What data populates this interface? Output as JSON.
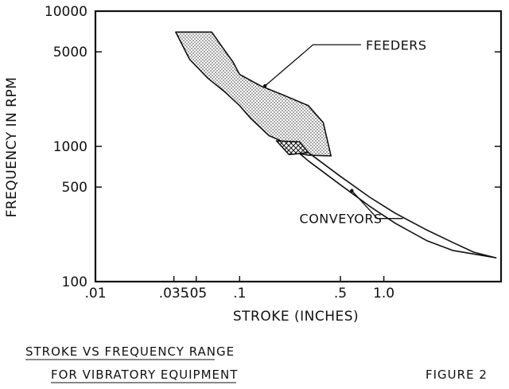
{
  "chart_data": {
    "type": "area",
    "xlabel": "STROKE (INCHES)",
    "ylabel": "FREQUENCY IN RPM",
    "x_scale": "log",
    "y_scale": "log",
    "xlim": [
      0.01,
      6.5
    ],
    "ylim": [
      100,
      10000
    ],
    "x_ticks": [
      {
        "value": 0.01,
        "label": ".01"
      },
      {
        "value": 0.035,
        "label": ".035"
      },
      {
        "value": 0.05,
        "label": ".05"
      },
      {
        "value": 0.1,
        "label": ".1"
      },
      {
        "value": 0.5,
        "label": ".5"
      },
      {
        "value": 1.0,
        "label": "1.0"
      }
    ],
    "y_ticks": [
      {
        "value": 100,
        "label": "100"
      },
      {
        "value": 500,
        "label": "500"
      },
      {
        "value": 1000,
        "label": "1000"
      },
      {
        "value": 5000,
        "label": "5000"
      },
      {
        "value": 10000,
        "label": "10000"
      }
    ],
    "grid": false,
    "series": [
      {
        "name": "FEEDERS",
        "fill": "dotted",
        "upper": [
          [
            0.064,
            7000
          ],
          [
            0.075,
            5500
          ],
          [
            0.09,
            4200
          ],
          [
            0.1,
            3400
          ],
          [
            0.14,
            2800
          ],
          [
            0.2,
            2400
          ],
          [
            0.3,
            2000
          ],
          [
            0.38,
            1500
          ],
          [
            0.43,
            850
          ]
        ],
        "lower": [
          [
            0.036,
            7000
          ],
          [
            0.045,
            4400
          ],
          [
            0.06,
            3200
          ],
          [
            0.08,
            2500
          ],
          [
            0.1,
            2000
          ],
          [
            0.12,
            1600
          ],
          [
            0.16,
            1200
          ],
          [
            0.2,
            1080
          ],
          [
            0.24,
            900
          ],
          [
            0.3,
            860
          ],
          [
            0.43,
            850
          ]
        ]
      },
      {
        "name": "CONVEYORS",
        "fill": "none",
        "upper": [
          [
            0.2,
            1080
          ],
          [
            0.3,
            900
          ],
          [
            0.5,
            600
          ],
          [
            0.8,
            420
          ],
          [
            1.2,
            320
          ],
          [
            2.0,
            240
          ],
          [
            3.0,
            195
          ],
          [
            4.2,
            165
          ],
          [
            6.0,
            150
          ]
        ],
        "lower": [
          [
            0.2,
            1080
          ],
          [
            0.25,
            920
          ],
          [
            0.3,
            780
          ],
          [
            0.5,
            520
          ],
          [
            0.8,
            360
          ],
          [
            1.2,
            270
          ],
          [
            2.0,
            200
          ],
          [
            3.0,
            170
          ],
          [
            6.0,
            150
          ]
        ]
      },
      {
        "name": "overlap",
        "fill": "crosshatch",
        "polygon": [
          [
            0.18,
            1100
          ],
          [
            0.26,
            1080
          ],
          [
            0.3,
            900
          ],
          [
            0.22,
            870
          ]
        ]
      }
    ],
    "annotations": [
      {
        "text": "FEEDERS",
        "at": [
          0.75,
          5200
        ],
        "points_to": [
          0.15,
          2800
        ]
      },
      {
        "text": "CONVEYORS",
        "at": [
          0.26,
          270
        ],
        "points_to": [
          0.6,
          470
        ]
      }
    ]
  },
  "caption": {
    "line1": "STROKE VS FREQUENCY RANGE",
    "line2": "FOR VIBRATORY EQUIPMENT",
    "figure": "FIGURE 2"
  }
}
